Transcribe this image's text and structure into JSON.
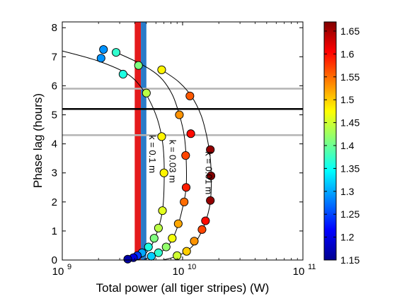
{
  "chart_data": {
    "type": "scatter",
    "xlabel": "Total power (all tiger stripes) (W)",
    "ylabel": "Phase lag (hours)",
    "xscale": "log",
    "xlim": [
      1000000000,
      100000000000
    ],
    "ylim": [
      0,
      8.2
    ],
    "x_ticks": [
      {
        "value": 1000000000,
        "base": "10",
        "exp": "9"
      },
      {
        "value": 10000000000,
        "base": "10",
        "exp": "10"
      },
      {
        "value": 100000000000,
        "base": "10",
        "exp": "11"
      }
    ],
    "y_ticks": [
      0,
      1,
      2,
      3,
      4,
      5,
      6,
      7,
      8
    ],
    "y_tick_labels": [
      "0",
      "1",
      "2",
      "3",
      "4",
      "5",
      "6",
      "7",
      "8"
    ],
    "grid": false,
    "hlines": [
      {
        "y": 5.2,
        "color": "#000000"
      },
      {
        "y": 5.9,
        "color": "#b4b4b4"
      },
      {
        "y": 4.3,
        "color": "#b4b4b4"
      }
    ],
    "vbands": [
      {
        "x_from": 4000000000,
        "x_to": 4500000000,
        "color": "#e41a1c"
      },
      {
        "x_from": 4500000000,
        "x_to": 5000000000,
        "color": "#2a7bc8"
      }
    ],
    "colorbar": {
      "min": 1.15,
      "max": 1.67,
      "ticks": [
        1.15,
        1.2,
        1.25,
        1.3,
        1.35,
        1.4,
        1.45,
        1.5,
        1.55,
        1.6,
        1.65
      ],
      "tick_labels": [
        "1.15",
        "1.2",
        "1.25",
        "1.3",
        "1.35",
        "1.4",
        "1.45",
        "1.5",
        "1.55",
        "1.6",
        "1.65"
      ]
    },
    "series": [
      {
        "label": "k = 0.1 m",
        "label_at": {
          "x": 5300000000,
          "y": 3.65
        },
        "curve": [
          [
            1000000000,
            7.2
          ],
          [
            2000000000,
            6.85
          ],
          [
            3500000000,
            6.4
          ],
          [
            4800000000,
            5.8
          ],
          [
            6000000000,
            5.0
          ],
          [
            6700000000,
            4.25
          ],
          [
            7000000000,
            3.5
          ],
          [
            7000000000,
            2.4
          ],
          [
            6800000000,
            1.7
          ],
          [
            6300000000,
            1.1
          ],
          [
            5600000000,
            0.55
          ],
          [
            5000000000,
            0.25
          ],
          [
            4500000000,
            0.08
          ],
          [
            4000000000,
            0.0
          ]
        ],
        "points": [
          {
            "x": 2200000000,
            "y": 7.25,
            "c": 1.29
          },
          {
            "x": 2100000000,
            "y": 6.95,
            "c": 1.29
          },
          {
            "x": 3200000000,
            "y": 6.4,
            "c": 1.36
          },
          {
            "x": 5000000000,
            "y": 5.75,
            "c": 1.44
          },
          {
            "x": 6700000000,
            "y": 4.25,
            "c": 1.48
          },
          {
            "x": 7000000000,
            "y": 3.0,
            "c": 1.48
          },
          {
            "x": 6800000000,
            "y": 1.7,
            "c": 1.46
          },
          {
            "x": 6300000000,
            "y": 1.1,
            "c": 1.44
          },
          {
            "x": 5800000000,
            "y": 0.75,
            "c": 1.41
          },
          {
            "x": 5200000000,
            "y": 0.45,
            "c": 1.36
          },
          {
            "x": 4600000000,
            "y": 0.25,
            "c": 1.3
          },
          {
            "x": 4200000000,
            "y": 0.15,
            "c": 1.24
          },
          {
            "x": 3900000000,
            "y": 0.08,
            "c": 1.2
          },
          {
            "x": 3500000000,
            "y": 0.03,
            "c": 1.17
          }
        ]
      },
      {
        "label": "k = 0.03 m",
        "label_at": {
          "x": 7800000000,
          "y": 3.4
        },
        "curve": [
          [
            2800000000,
            7.15
          ],
          [
            4500000000,
            6.75
          ],
          [
            6500000000,
            6.3
          ],
          [
            8200000000,
            5.7
          ],
          [
            9400000000,
            5.0
          ],
          [
            10300000000,
            4.3
          ],
          [
            10700000000,
            3.5
          ],
          [
            10700000000,
            2.5
          ],
          [
            10000000000,
            1.8
          ],
          [
            9000000000,
            1.1
          ],
          [
            7800000000,
            0.55
          ],
          [
            6500000000,
            0.25
          ],
          [
            5500000000,
            0.1
          ],
          [
            4800000000,
            0.03
          ]
        ],
        "points": [
          {
            "x": 2800000000,
            "y": 7.15,
            "c": 1.37
          },
          {
            "x": 4300000000,
            "y": 6.7,
            "c": 1.41
          },
          {
            "x": 9400000000,
            "y": 5.0,
            "c": 1.53
          },
          {
            "x": 10600000000,
            "y": 3.6,
            "c": 1.57
          },
          {
            "x": 10700000000,
            "y": 2.5,
            "c": 1.59
          },
          {
            "x": 10300000000,
            "y": 2.0,
            "c": 1.55
          },
          {
            "x": 9200000000,
            "y": 1.25,
            "c": 1.52
          },
          {
            "x": 8200000000,
            "y": 0.75,
            "c": 1.47
          },
          {
            "x": 7300000000,
            "y": 0.45,
            "c": 1.42
          },
          {
            "x": 6300000000,
            "y": 0.25,
            "c": 1.37
          },
          {
            "x": 5500000000,
            "y": 0.13,
            "c": 1.32
          }
        ]
      },
      {
        "label": "k = 0.01 m",
        "label_at": {
          "x": 15500000000,
          "y": 3.0
        },
        "curve": [
          [
            6700000000,
            6.55
          ],
          [
            9200000000,
            6.15
          ],
          [
            11800000000,
            5.65
          ],
          [
            14200000000,
            5.0
          ],
          [
            15800000000,
            4.3
          ],
          [
            17000000000,
            3.5
          ],
          [
            17300000000,
            2.5
          ],
          [
            16700000000,
            1.8
          ],
          [
            14800000000,
            1.1
          ],
          [
            12500000000,
            0.55
          ],
          [
            10300000000,
            0.25
          ],
          [
            8200000000,
            0.08
          ],
          [
            6800000000,
            0.0
          ]
        ],
        "points": [
          {
            "x": 6700000000,
            "y": 6.55,
            "c": 1.48
          },
          {
            "x": 11500000000,
            "y": 5.65,
            "c": 1.56
          },
          {
            "x": 11700000000,
            "y": 4.35,
            "c": 1.6
          },
          {
            "x": 17000000000,
            "y": 3.8,
            "c": 1.66
          },
          {
            "x": 17200000000,
            "y": 2.9,
            "c": 1.67
          },
          {
            "x": 17000000000,
            "y": 2.05,
            "c": 1.66
          },
          {
            "x": 15500000000,
            "y": 1.35,
            "c": 1.6
          },
          {
            "x": 14500000000,
            "y": 1.05,
            "c": 1.57
          },
          {
            "x": 12500000000,
            "y": 0.65,
            "c": 1.53
          },
          {
            "x": 10800000000,
            "y": 0.3,
            "c": 1.5
          },
          {
            "x": 9000000000,
            "y": 0.15,
            "c": 1.45
          }
        ]
      }
    ]
  }
}
